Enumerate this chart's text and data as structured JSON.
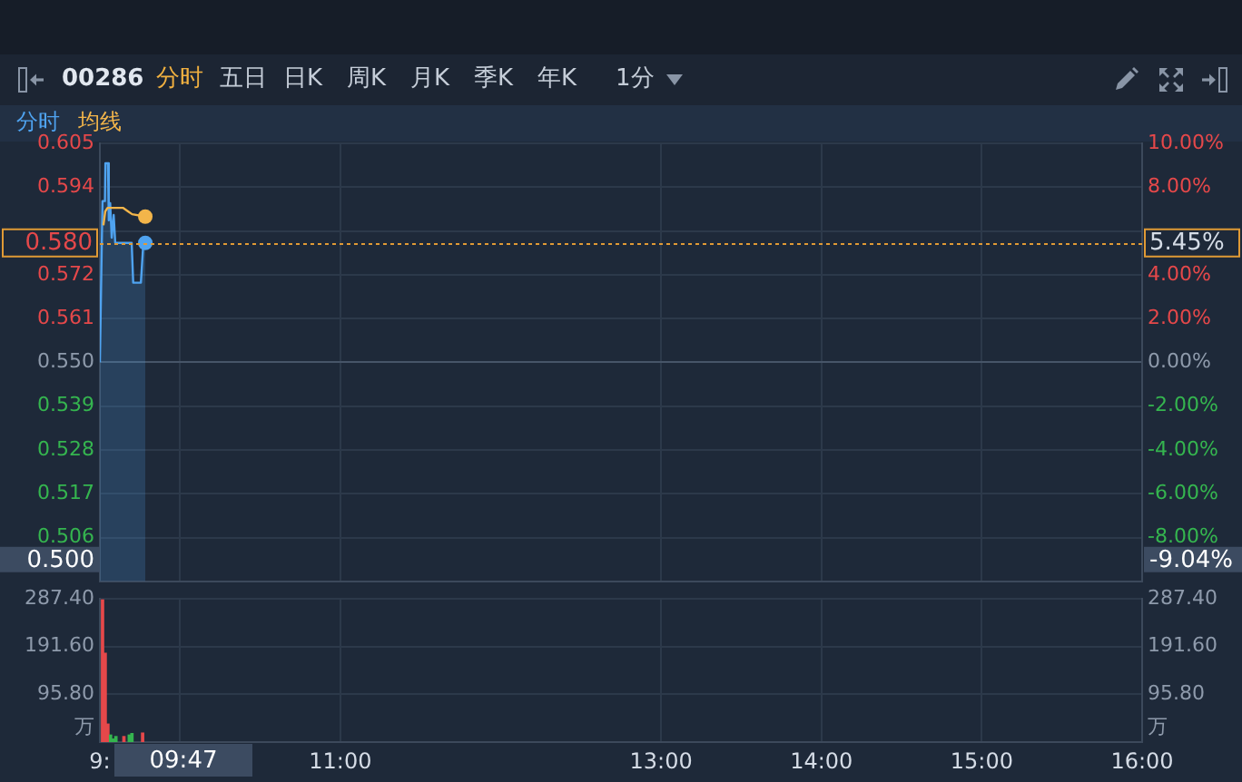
{
  "chart_data": [
    {
      "type": "line",
      "title": "00286",
      "subtitle": "分时 五日 日K 周K 月K 季K 年K 1分",
      "annotations": [
        "5.45%",
        "0.500",
        "-9.04%"
      ],
      "series": [
        {
          "name": "分时",
          "type": "area",
          "color": "#4fa3f0",
          "x": [
            9.5,
            9.5163,
            9.5316,
            9.5345,
            9.5508,
            9.5556,
            9.5642,
            9.5738,
            9.5862,
            9.5958,
            9.6984,
            9.7079,
            9.7558,
            9.7712,
            9.7833
          ],
          "values": [
            0.55,
            0.5905,
            0.5905,
            0.6,
            0.6,
            0.5857,
            0.59,
            0.5813,
            0.587,
            0.58,
            0.58,
            0.57,
            0.57,
            0.58,
            0.58
          ]
        },
        {
          "name": "均线",
          "color": "#f3b54a",
          "x": [
            9.522,
            9.5335,
            9.5479,
            9.6437,
            9.6754,
            9.7012,
            9.7833
          ],
          "values": [
            0.5844,
            0.5879,
            0.5888,
            0.5888,
            0.5879,
            0.5872,
            0.5866
          ]
        }
      ],
      "xlim": [
        9.5,
        16
      ],
      "xticks": [
        9.5,
        10,
        11,
        13,
        14,
        15,
        16
      ],
      "ylim": [
        0.495,
        0.605
      ],
      "yticks": [
        0.605,
        0.594,
        {
          "value": 0.583,
          "label": null
        },
        0.572,
        0.561,
        {
          "value": 0.55,
          "label": "0.550"
        },
        0.539,
        0.528,
        0.517,
        0.506
      ],
      "y2lim": [
        -10,
        10
      ],
      "y2ticks": [
        {
          "value": 10,
          "label": "10.00%"
        },
        {
          "value": 8,
          "label": "8.00%"
        },
        {
          "value": 6,
          "label": null
        },
        {
          "value": 4,
          "label": "4.00%"
        },
        {
          "value": 2,
          "label": "2.00%"
        },
        {
          "value": 0,
          "label": "0.00%"
        },
        {
          "value": -2,
          "label": "-2.00%"
        },
        {
          "value": -4,
          "label": "-4.00%"
        },
        {
          "value": -6,
          "label": "-6.00%"
        },
        {
          "value": -8,
          "label": "-8.00%"
        }
      ],
      "ref_lines": [
        {
          "axis": "y",
          "value": 0.58,
          "label": "0.580",
          "color": "#e09a35",
          "line_style": "dotted"
        }
      ],
      "grid": true,
      "legend": "top left",
      "tick_labels": "y"
    },
    {
      "type": "bar",
      "x": [
        9.5167,
        9.5333,
        9.55,
        9.5667,
        9.5833,
        9.6,
        9.65,
        9.6833,
        9.7,
        9.7667
      ],
      "values": [
        285,
        178,
        36,
        14,
        6,
        11,
        11,
        14,
        17,
        18
      ],
      "colors": [
        "#e5484a",
        "#e5484a",
        "#e5484a",
        "#35b54f",
        "#35b54f",
        "#35b54f",
        "#e5484a",
        "#35b54f",
        "#35b54f",
        "#e5484a"
      ],
      "xlim": [
        9.5,
        16
      ],
      "xticks": [
        {
          "value": 9.5,
          "label": "9:"
        },
        {
          "value": 10,
          "label": null
        },
        {
          "value": 11,
          "label": "11:00"
        },
        {
          "value": 13,
          "label": "13:00"
        },
        {
          "value": 14,
          "label": "14:00"
        },
        {
          "value": 15,
          "label": "15:00"
        },
        {
          "value": 16,
          "label": "16:00"
        }
      ],
      "ylim": [
        0,
        287.4
      ],
      "yticks": [
        {
          "value": 287.4,
          "label": "287.40"
        },
        {
          "value": 191.6,
          "label": "191.60"
        },
        {
          "value": 95.8,
          "label": "95.80"
        }
      ],
      "y2lim": [
        0,
        287.4
      ],
      "y2ticks": [
        {
          "value": 287.4,
          "label": "287.40"
        },
        {
          "value": 191.6,
          "label": "191.60"
        },
        {
          "value": 95.8,
          "label": "95.80"
        }
      ],
      "ylabel": "万",
      "y2label": "万",
      "grid": true,
      "annotations": [
        "09:47"
      ]
    }
  ]
}
